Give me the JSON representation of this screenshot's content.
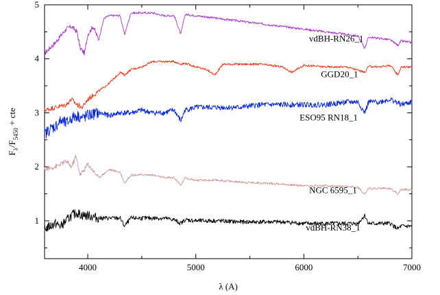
{
  "chart_data": {
    "type": "line",
    "title": "",
    "xlabel": "λ (A)",
    "ylabel_main": "F",
    "ylabel_sub1": "λ",
    "ylabel_mid": "/F",
    "ylabel_sub2": "5450",
    "ylabel_tail": " + cte",
    "xlim": [
      3600,
      7000
    ],
    "ylim": [
      0.3,
      5.0
    ],
    "xticks": [
      4000,
      5000,
      6000,
      7000
    ],
    "yticks": [
      1,
      2,
      3,
      4,
      5
    ],
    "grid": false,
    "series": [
      {
        "name": "vdBH-RN26_1",
        "color": "#a633cc",
        "x": [
          3600,
          3700,
          3800,
          3850,
          3900,
          3930,
          3970,
          4000,
          4050,
          4101,
          4150,
          4200,
          4300,
          4340,
          4400,
          4500,
          4600,
          4700,
          4800,
          4861,
          4900,
          5000,
          5200,
          5400,
          5600,
          5800,
          6000,
          6200,
          6400,
          6500,
          6563,
          6600,
          6700,
          6800,
          6870,
          6900,
          7000
        ],
        "y": [
          4.1,
          4.3,
          4.55,
          4.6,
          4.5,
          4.2,
          4.1,
          4.45,
          4.6,
          4.35,
          4.75,
          4.8,
          4.8,
          4.45,
          4.85,
          4.85,
          4.85,
          4.8,
          4.8,
          4.45,
          4.82,
          4.8,
          4.75,
          4.7,
          4.65,
          4.6,
          4.55,
          4.5,
          4.45,
          4.42,
          4.2,
          4.4,
          4.38,
          4.35,
          4.25,
          4.33,
          4.3
        ]
      },
      {
        "name": "GGD20_1",
        "color": "#ee3311",
        "x": [
          3600,
          3700,
          3800,
          3850,
          3900,
          3950,
          4000,
          4100,
          4200,
          4300,
          4340,
          4400,
          4500,
          4600,
          4700,
          4800,
          4861,
          4900,
          5000,
          5100,
          5175,
          5250,
          5400,
          5600,
          5800,
          5890,
          6000,
          6200,
          6400,
          6563,
          6600,
          6700,
          6800,
          6870,
          6900,
          7000
        ],
        "y": [
          3.05,
          3.1,
          3.15,
          3.25,
          3.15,
          3.1,
          3.25,
          3.4,
          3.55,
          3.75,
          3.7,
          3.8,
          3.85,
          3.95,
          3.95,
          3.95,
          3.9,
          3.92,
          3.85,
          3.8,
          3.7,
          3.9,
          3.9,
          3.9,
          3.85,
          3.75,
          3.88,
          3.85,
          3.85,
          3.75,
          3.86,
          3.85,
          3.88,
          3.7,
          3.85,
          3.85
        ]
      },
      {
        "name": "ESO95 RN18_1",
        "color": "#0022dd",
        "x": [
          3600,
          3650,
          3700,
          3750,
          3800,
          3850,
          3900,
          3950,
          4000,
          4100,
          4200,
          4300,
          4400,
          4500,
          4600,
          4700,
          4800,
          4861,
          4900,
          5000,
          5200,
          5400,
          5600,
          5800,
          6000,
          6200,
          6400,
          6500,
          6563,
          6600,
          6700,
          6800,
          6900,
          7000
        ],
        "y": [
          2.6,
          2.7,
          2.75,
          2.85,
          2.8,
          2.9,
          2.95,
          2.9,
          2.95,
          3.0,
          2.95,
          3.0,
          3.0,
          3.05,
          3.0,
          3.0,
          3.05,
          2.85,
          3.05,
          3.1,
          3.1,
          3.1,
          3.15,
          3.15,
          3.15,
          3.15,
          3.2,
          3.2,
          3.0,
          3.2,
          3.2,
          3.25,
          3.15,
          3.2
        ]
      },
      {
        "name": "NGC 6595_1",
        "color": "#cc9999",
        "x": [
          3600,
          3700,
          3800,
          3850,
          3890,
          3930,
          3970,
          4000,
          4101,
          4200,
          4300,
          4340,
          4400,
          4500,
          4600,
          4700,
          4800,
          4861,
          4900,
          5000,
          5200,
          5400,
          5600,
          5800,
          6000,
          6200,
          6400,
          6500,
          6563,
          6600,
          6700,
          6800,
          6870,
          6900,
          7000
        ],
        "y": [
          1.95,
          2.0,
          2.1,
          2.0,
          2.2,
          1.85,
          1.95,
          2.05,
          1.8,
          1.95,
          1.9,
          1.7,
          1.85,
          1.85,
          1.85,
          1.8,
          1.8,
          1.65,
          1.8,
          1.75,
          1.75,
          1.72,
          1.7,
          1.68,
          1.65,
          1.65,
          1.63,
          1.62,
          1.5,
          1.6,
          1.6,
          1.6,
          1.5,
          1.58,
          1.58
        ]
      },
      {
        "name": "vdBH-RN38_1",
        "color": "#000000",
        "x": [
          3600,
          3650,
          3700,
          3750,
          3800,
          3850,
          3900,
          3950,
          4000,
          4100,
          4200,
          4300,
          4340,
          4400,
          4500,
          4600,
          4700,
          4800,
          4861,
          4900,
          5000,
          5200,
          5400,
          5600,
          5800,
          6000,
          6200,
          6400,
          6500,
          6563,
          6600,
          6700,
          6800,
          6870,
          6900,
          7000
        ],
        "y": [
          0.85,
          0.9,
          0.95,
          0.9,
          1.0,
          1.1,
          1.15,
          1.1,
          1.1,
          1.05,
          1.05,
          1.05,
          0.9,
          1.05,
          1.05,
          1.05,
          1.05,
          1.02,
          0.95,
          1.02,
          1.0,
          1.0,
          0.98,
          0.98,
          0.98,
          0.95,
          0.95,
          0.95,
          0.95,
          1.1,
          0.95,
          0.95,
          0.95,
          0.85,
          0.9,
          0.9
        ]
      }
    ],
    "labels": [
      {
        "text": "vdBH-RN26_1",
        "x": 6300,
        "y": 4.32
      },
      {
        "text": "GGD20_1",
        "x": 6330,
        "y": 3.66
      },
      {
        "text": "ESO95 RN18_1",
        "x": 6230,
        "y": 2.86
      },
      {
        "text": "NGC 6595_1",
        "x": 6270,
        "y": 1.51
      },
      {
        "text": "vdBH-RN38_1",
        "x": 6270,
        "y": 0.82
      }
    ]
  }
}
